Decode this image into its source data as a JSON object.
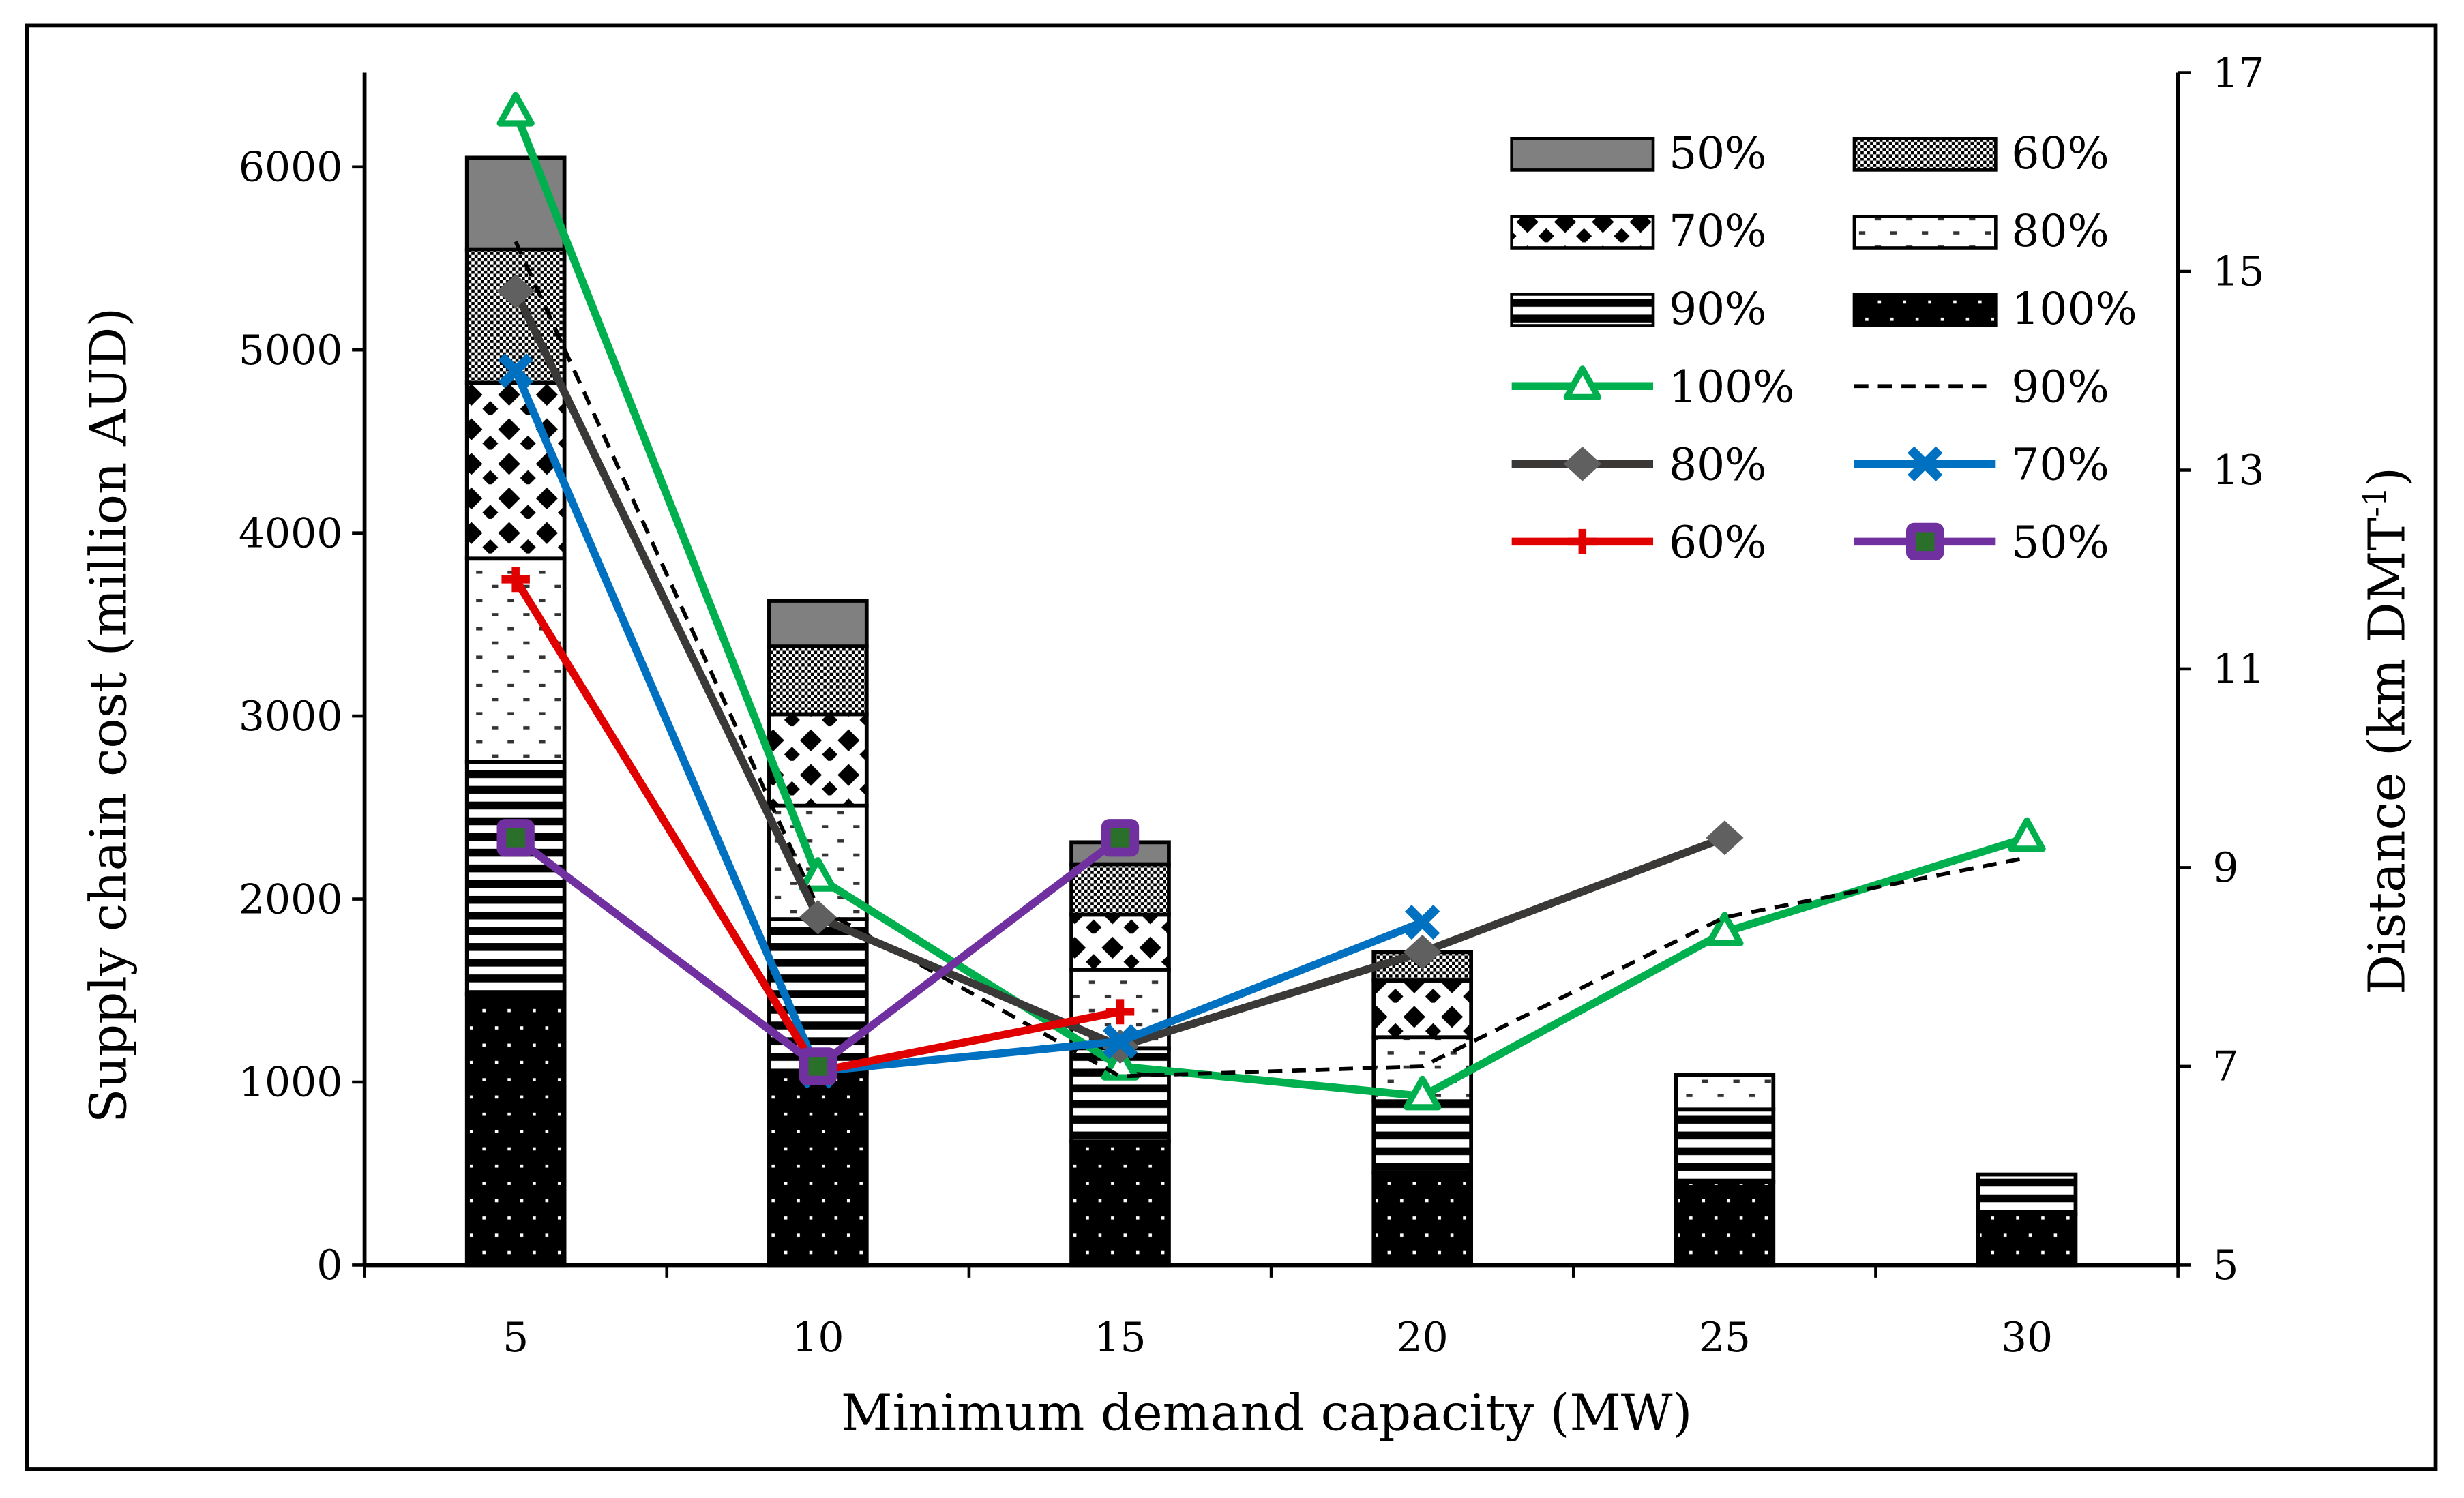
{
  "chart_data": {
    "type": "bar",
    "subtype": "stacked bar with line overlay (dual axis)",
    "xlabel": "Minimum demand capacity (MW)",
    "ylabel": "Supply chain cost (million AUD)",
    "y2label_main": "Distance (km DMT",
    "y2label_sup": "-1",
    "y2label_end": ")",
    "categories": [
      "5",
      "10",
      "15",
      "20",
      "25",
      "30"
    ],
    "ylim": [
      0,
      6500
    ],
    "yticks": [
      "0",
      "1000",
      "2000",
      "3000",
      "4000",
      "5000",
      "6000"
    ],
    "y2lim": [
      5,
      17
    ],
    "y2ticks": [
      "5",
      "7",
      "9",
      "11",
      "13",
      "15",
      "17"
    ],
    "grid": false,
    "legend_position": "top-right",
    "bar_series": [
      {
        "name": "100%",
        "pattern": "black-dots",
        "values": [
          1480,
          1050,
          675,
          505,
          455,
          280
        ]
      },
      {
        "name": "90%",
        "pattern": "horizontal-stripes",
        "values": [
          1270,
          840,
          510,
          390,
          395,
          215
        ]
      },
      {
        "name": "80%",
        "pattern": "sparse-dashes",
        "values": [
          1110,
          620,
          430,
          350,
          190,
          0
        ]
      },
      {
        "name": "70%",
        "pattern": "diamonds",
        "values": [
          960,
          500,
          300,
          310,
          0,
          0
        ]
      },
      {
        "name": "60%",
        "pattern": "checker",
        "values": [
          730,
          370,
          275,
          155,
          0,
          0
        ]
      },
      {
        "name": "50%",
        "pattern": "solid-gray",
        "values": [
          500,
          250,
          120,
          0,
          0,
          0
        ]
      }
    ],
    "line_series": [
      {
        "name": "100%",
        "color": "#00b04f",
        "marker": "triangle",
        "values": [
          16.6,
          8.9,
          7.0,
          6.7,
          8.35,
          9.3
        ]
      },
      {
        "name": "90%",
        "color": "#000000",
        "marker": "none",
        "dashed": true,
        "values": [
          15.3,
          8.6,
          6.9,
          7.0,
          8.5,
          9.1
        ]
      },
      {
        "name": "80%",
        "color": "#3b3838",
        "marker": "diamond",
        "values": [
          14.8,
          8.5,
          7.2,
          8.15,
          9.3,
          null
        ]
      },
      {
        "name": "70%",
        "color": "#0070c0",
        "marker": "x",
        "values": [
          14.0,
          6.95,
          7.25,
          8.45,
          null,
          null
        ]
      },
      {
        "name": "60%",
        "color": "#e00000",
        "marker": "plus",
        "values": [
          11.9,
          6.95,
          7.55,
          null,
          null,
          null
        ]
      },
      {
        "name": "50%",
        "color": "#7030a0",
        "marker": "square",
        "values": [
          9.3,
          7.0,
          9.3,
          null,
          null,
          null
        ]
      }
    ],
    "legend": {
      "bars": [
        "50%",
        "60%",
        "70%",
        "80%",
        "90%",
        "100%"
      ],
      "lines": [
        "100%",
        "90%",
        "80%",
        "70%",
        "60%",
        "50%"
      ]
    }
  }
}
